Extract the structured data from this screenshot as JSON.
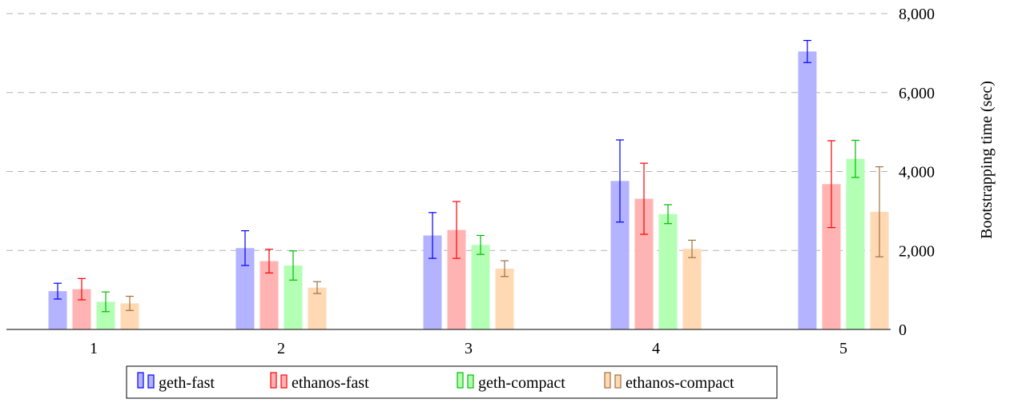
{
  "chart_data": {
    "type": "bar",
    "title": "",
    "xlabel": "",
    "ylabel": "Bootstrapping time (sec)",
    "ylim": [
      0,
      8000
    ],
    "yticks": [
      0,
      2000,
      4000,
      6000,
      8000
    ],
    "ytick_labels": [
      "0",
      "2,000",
      "4,000",
      "6,000",
      "8,000"
    ],
    "categories": [
      "1",
      "2",
      "3",
      "4",
      "5"
    ],
    "grid": "horizontal-dashed",
    "legend_position": "bottom-center",
    "y_axis_position": "right",
    "series": [
      {
        "name": "geth-fast",
        "fill": "#b3b3ff",
        "stroke": "#0000ff",
        "values": [
          970,
          2060,
          2380,
          3760,
          7040
        ],
        "err": [
          200,
          440,
          580,
          1040,
          280
        ]
      },
      {
        "name": "ethanos-fast",
        "fill": "#ffb3b3",
        "stroke": "#ff0000",
        "values": [
          1020,
          1730,
          2520,
          3310,
          3680
        ],
        "err": [
          270,
          300,
          720,
          900,
          1100
        ]
      },
      {
        "name": "geth-compact",
        "fill": "#b3ffb3",
        "stroke": "#00bb00",
        "values": [
          700,
          1620,
          2140,
          2920,
          4320
        ],
        "err": [
          250,
          370,
          240,
          240,
          470
        ]
      },
      {
        "name": "ethanos-compact",
        "fill": "#ffd9b3",
        "stroke": "#a07040",
        "values": [
          660,
          1060,
          1540,
          2040,
          2980
        ],
        "err": [
          180,
          150,
          200,
          220,
          1140
        ]
      }
    ]
  }
}
